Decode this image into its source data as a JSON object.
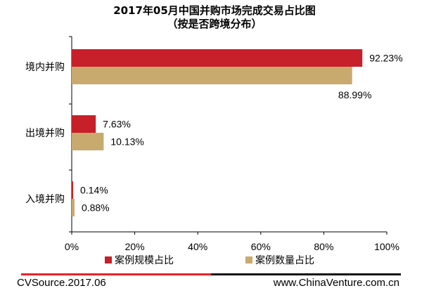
{
  "chart_data": {
    "type": "bar",
    "orientation": "horizontal",
    "title": "2017年05月中国并购市场完成交易占比图",
    "subtitle": "（按是否跨境分布）",
    "categories": [
      "境内并购",
      "出境并购",
      "入境并购"
    ],
    "series": [
      {
        "name": "案例规模占比",
        "color": "#c8202a",
        "values": [
          92.23,
          7.63,
          0.14
        ],
        "labels": [
          "92.23%",
          "7.63%",
          "0.14%"
        ]
      },
      {
        "name": "案例数量占比",
        "color": "#c8aa6e",
        "values": [
          88.99,
          10.13,
          0.88
        ],
        "labels": [
          "88.99%",
          "10.13%",
          "0.88%"
        ]
      }
    ],
    "xlim": [
      0,
      100
    ],
    "xticks": [
      0,
      20,
      40,
      60,
      80,
      100
    ],
    "xtick_labels": [
      "0%",
      "20%",
      "40%",
      "60%",
      "80%",
      "100%"
    ],
    "grid": false,
    "legend_position": "bottom"
  },
  "footer": {
    "source": "CVSource.2017.06",
    "website": "www.ChinaVenture.com.cn",
    "line_colors": [
      "#e8232a",
      "#111111"
    ]
  }
}
